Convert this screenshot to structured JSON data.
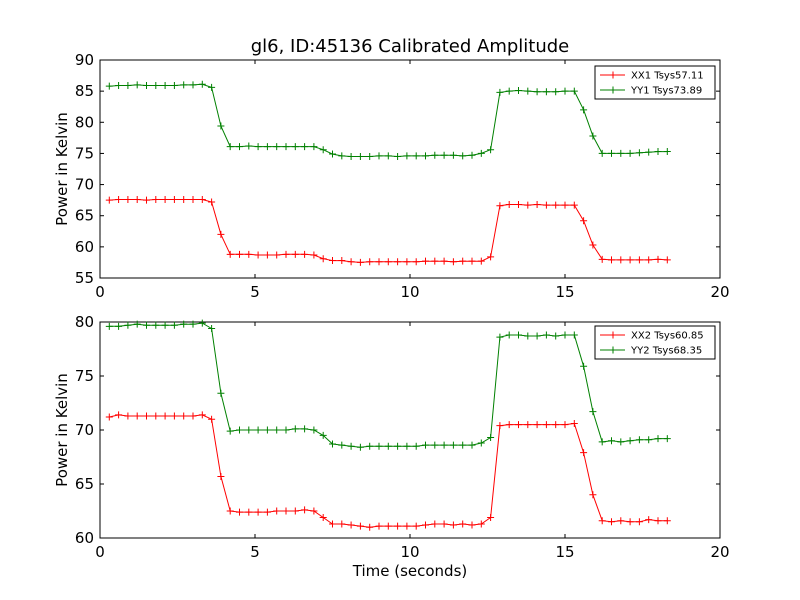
{
  "title": "gl6, ID:45136 Calibrated Amplitude",
  "chart_data": [
    {
      "type": "line",
      "title": "gl6, ID:45136 Calibrated Amplitude",
      "xlabel": "",
      "ylabel": "Power in Kelvin",
      "xlim": [
        0,
        20
      ],
      "ylim": [
        55,
        90
      ],
      "xticks": [
        "0",
        "5",
        "10",
        "15",
        "20"
      ],
      "yticks": [
        "55",
        "60",
        "65",
        "70",
        "75",
        "80",
        "85",
        "90"
      ],
      "grid": false,
      "legend_position": "top-right",
      "x": [
        0.3,
        0.6,
        0.9,
        1.2,
        1.5,
        1.8,
        2.1,
        2.4,
        2.7,
        3.0,
        3.3,
        3.6,
        3.9,
        4.2,
        4.5,
        4.8,
        5.1,
        5.4,
        5.7,
        6.0,
        6.3,
        6.6,
        6.9,
        7.2,
        7.5,
        7.8,
        8.1,
        8.4,
        8.7,
        9.0,
        9.3,
        9.6,
        9.9,
        10.2,
        10.5,
        10.8,
        11.1,
        11.4,
        11.7,
        12.0,
        12.3,
        12.6,
        12.9,
        13.2,
        13.5,
        13.8,
        14.1,
        14.4,
        14.7,
        15.0,
        15.3,
        15.6,
        15.9,
        16.2,
        16.5,
        16.8,
        17.1,
        17.4,
        17.7,
        18.0,
        18.3
      ],
      "series": [
        {
          "name": "XX1 Tsys57.11",
          "color": "#ff0000",
          "values": [
            67.5,
            67.6,
            67.6,
            67.6,
            67.5,
            67.6,
            67.6,
            67.6,
            67.6,
            67.6,
            67.6,
            67.2,
            62.0,
            58.8,
            58.8,
            58.8,
            58.7,
            58.7,
            58.7,
            58.8,
            58.8,
            58.8,
            58.7,
            58.1,
            57.8,
            57.8,
            57.6,
            57.5,
            57.6,
            57.6,
            57.6,
            57.6,
            57.6,
            57.6,
            57.7,
            57.7,
            57.7,
            57.6,
            57.7,
            57.7,
            57.7,
            58.4,
            66.6,
            66.8,
            66.8,
            66.7,
            66.8,
            66.7,
            66.7,
            66.7,
            66.7,
            64.2,
            60.3,
            58.0,
            57.9,
            57.9,
            57.9,
            57.9,
            57.9,
            58.0,
            57.9
          ]
        },
        {
          "name": "YY1 Tsys73.89",
          "color": "#008000",
          "values": [
            85.8,
            85.9,
            85.9,
            86.0,
            85.9,
            85.9,
            85.9,
            85.9,
            86.0,
            86.0,
            86.1,
            85.6,
            79.4,
            76.1,
            76.1,
            76.2,
            76.1,
            76.1,
            76.1,
            76.1,
            76.1,
            76.1,
            76.1,
            75.6,
            74.9,
            74.6,
            74.5,
            74.5,
            74.5,
            74.6,
            74.6,
            74.5,
            74.6,
            74.6,
            74.6,
            74.7,
            74.7,
            74.7,
            74.6,
            74.7,
            75.0,
            75.6,
            84.8,
            85.0,
            85.1,
            85.0,
            84.9,
            84.9,
            84.9,
            85.0,
            85.0,
            82.0,
            77.8,
            75.0,
            75.0,
            75.0,
            75.0,
            75.1,
            75.2,
            75.3,
            75.3
          ]
        }
      ]
    },
    {
      "type": "line",
      "title": "",
      "xlabel": "Time (seconds)",
      "ylabel": "Power in Kelvin",
      "xlim": [
        0,
        20
      ],
      "ylim": [
        60,
        80
      ],
      "xticks": [
        "0",
        "5",
        "10",
        "15",
        "20"
      ],
      "yticks": [
        "60",
        "65",
        "70",
        "75",
        "80"
      ],
      "grid": false,
      "legend_position": "top-right",
      "x": [
        0.3,
        0.6,
        0.9,
        1.2,
        1.5,
        1.8,
        2.1,
        2.4,
        2.7,
        3.0,
        3.3,
        3.6,
        3.9,
        4.2,
        4.5,
        4.8,
        5.1,
        5.4,
        5.7,
        6.0,
        6.3,
        6.6,
        6.9,
        7.2,
        7.5,
        7.8,
        8.1,
        8.4,
        8.7,
        9.0,
        9.3,
        9.6,
        9.9,
        10.2,
        10.5,
        10.8,
        11.1,
        11.4,
        11.7,
        12.0,
        12.3,
        12.6,
        12.9,
        13.2,
        13.5,
        13.8,
        14.1,
        14.4,
        14.7,
        15.0,
        15.3,
        15.6,
        15.9,
        16.2,
        16.5,
        16.8,
        17.1,
        17.4,
        17.7,
        18.0,
        18.3
      ],
      "series": [
        {
          "name": "XX2 Tsys60.85",
          "color": "#ff0000",
          "values": [
            71.2,
            71.4,
            71.3,
            71.3,
            71.3,
            71.3,
            71.3,
            71.3,
            71.3,
            71.3,
            71.4,
            71.0,
            65.7,
            62.5,
            62.4,
            62.4,
            62.4,
            62.4,
            62.5,
            62.5,
            62.5,
            62.6,
            62.5,
            61.9,
            61.3,
            61.3,
            61.2,
            61.1,
            61.0,
            61.1,
            61.1,
            61.1,
            61.1,
            61.1,
            61.2,
            61.3,
            61.3,
            61.2,
            61.3,
            61.2,
            61.3,
            61.9,
            70.4,
            70.5,
            70.5,
            70.5,
            70.5,
            70.5,
            70.5,
            70.5,
            70.6,
            67.9,
            64.0,
            61.6,
            61.5,
            61.6,
            61.5,
            61.5,
            61.7,
            61.6,
            61.6
          ]
        },
        {
          "name": "YY2 Tsys68.35",
          "color": "#008000",
          "values": [
            79.6,
            79.6,
            79.7,
            79.8,
            79.7,
            79.7,
            79.7,
            79.7,
            79.8,
            79.8,
            79.9,
            79.4,
            73.4,
            69.9,
            70.0,
            70.0,
            70.0,
            70.0,
            70.0,
            70.0,
            70.1,
            70.1,
            70.0,
            69.5,
            68.7,
            68.6,
            68.5,
            68.4,
            68.5,
            68.5,
            68.5,
            68.5,
            68.5,
            68.5,
            68.6,
            68.6,
            68.6,
            68.6,
            68.6,
            68.6,
            68.8,
            69.3,
            78.6,
            78.8,
            78.8,
            78.7,
            78.7,
            78.8,
            78.7,
            78.8,
            78.8,
            75.9,
            71.7,
            68.9,
            69.0,
            68.9,
            69.0,
            69.1,
            69.1,
            69.2,
            69.2
          ]
        }
      ]
    }
  ]
}
